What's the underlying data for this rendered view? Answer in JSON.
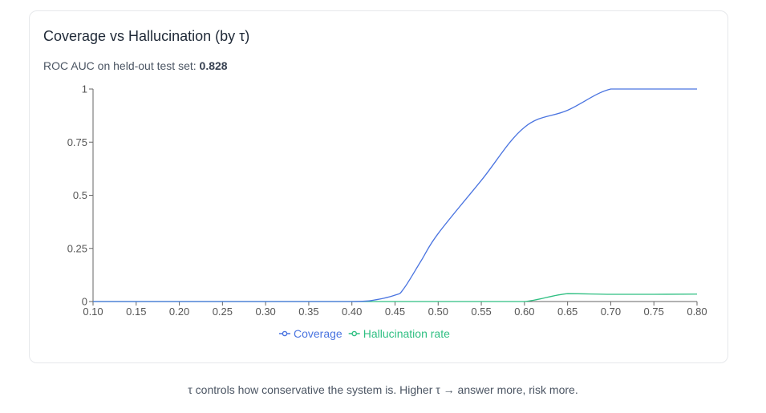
{
  "card": {
    "title": "Coverage vs Hallucination (by τ)",
    "subtitle_prefix": "ROC AUC on held-out test set: ",
    "auc": "0.828"
  },
  "footer": {
    "text": "τ controls how conservative the system is. Higher τ → answer more, risk more."
  },
  "chart_data": {
    "type": "line",
    "x": [
      0.1,
      0.15,
      0.2,
      0.25,
      0.3,
      0.35,
      0.4,
      0.42,
      0.45,
      0.46,
      0.48,
      0.5,
      0.55,
      0.6,
      0.65,
      0.7,
      0.75,
      0.8
    ],
    "series": [
      {
        "name": "Coverage",
        "color": "#4a74e0",
        "values": [
          0,
          0,
          0,
          0,
          0,
          0,
          0,
          0.003,
          0.03,
          0.06,
          0.19,
          0.32,
          0.57,
          0.82,
          0.9,
          1.0,
          1.0,
          1.0
        ]
      },
      {
        "name": "Hallucination rate",
        "color": "#2fbf82",
        "values": [
          0,
          0,
          0,
          0,
          0,
          0,
          0,
          0,
          0,
          0,
          0,
          0,
          0,
          0,
          0.037,
          0.034,
          0.034,
          0.035
        ]
      }
    ],
    "xticks": [
      "0.10",
      "0.15",
      "0.20",
      "0.25",
      "0.30",
      "0.35",
      "0.40",
      "0.45",
      "0.50",
      "0.55",
      "0.60",
      "0.65",
      "0.70",
      "0.75",
      "0.80"
    ],
    "yticks": [
      "0",
      "0.25",
      "0.5",
      "0.75",
      "1"
    ],
    "xlim": [
      0.1,
      0.8
    ],
    "ylim": [
      0,
      1
    ],
    "grid": false,
    "legend": "bottom-center"
  }
}
